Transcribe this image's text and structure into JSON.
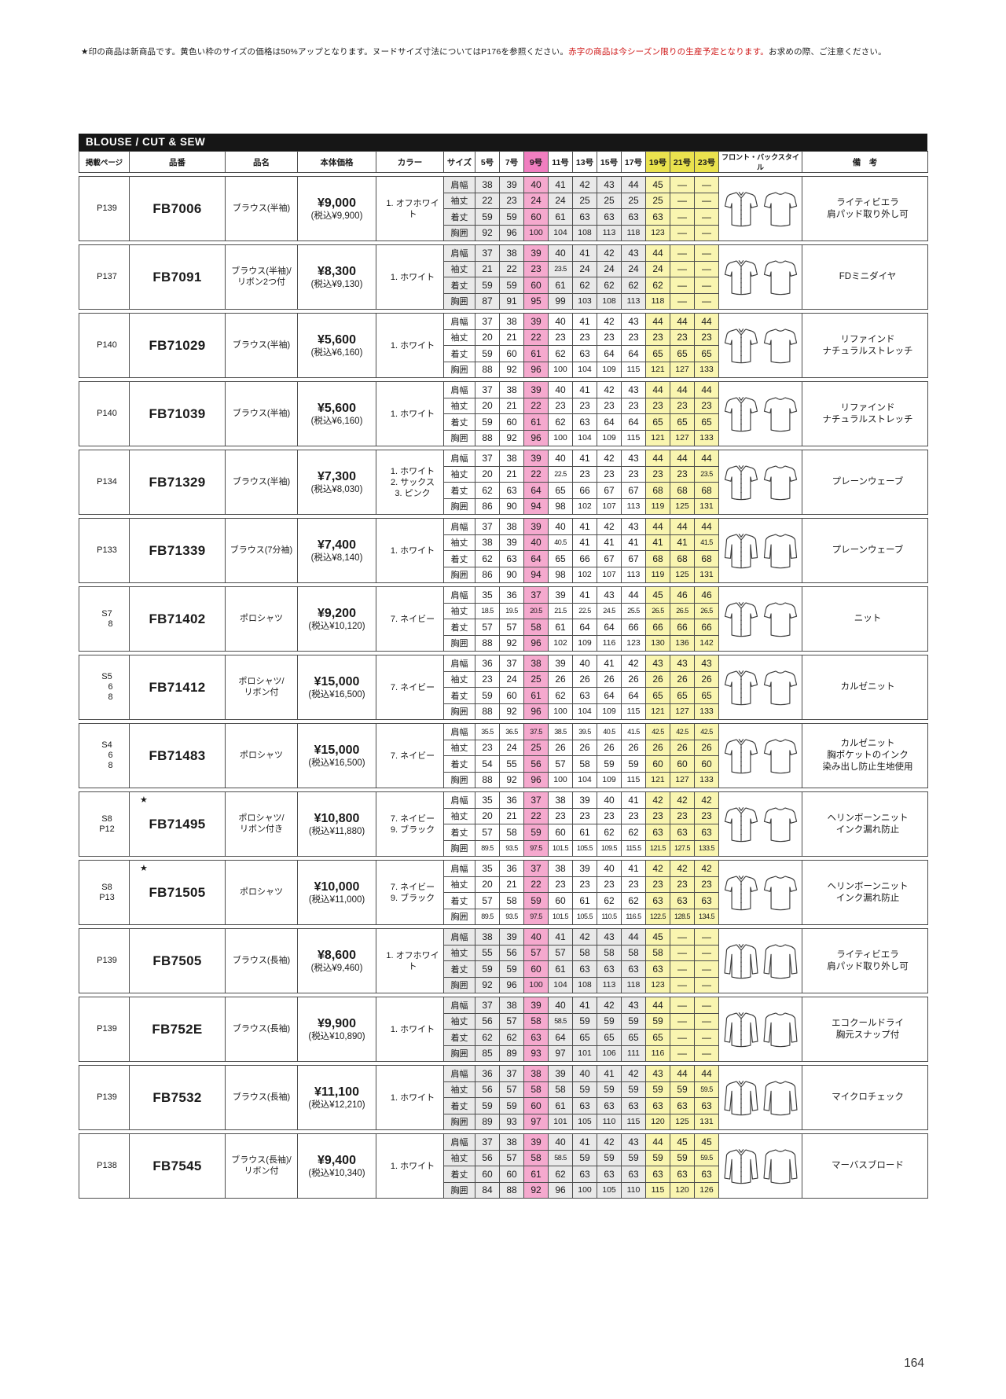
{
  "note": {
    "prefix": "★印の商品は新商品です。黄色い枠のサイズの価格は50%アップとなります。ヌードサイズ寸法についてはP176を参照ください。",
    "red": "赤字の商品は今シーズン限りの生産予定となります。",
    "suffix": "お求めの際、ご注意ください。"
  },
  "banner": "BLOUSE / CUT & SEW",
  "header": {
    "page": "掲載ページ",
    "code": "品番",
    "name": "品名",
    "price": "本体価格",
    "color": "カラー",
    "size": "サイズ",
    "sizes": [
      "5号",
      "7号",
      "9号",
      "11号",
      "13号",
      "15号",
      "17号",
      "19号",
      "21号",
      "23号"
    ],
    "style": "フロント・バックスタイル",
    "remarks": "備　考"
  },
  "measure_labels": [
    "肩幅",
    "袖丈",
    "着丈",
    "胸囲"
  ],
  "page_number": "164",
  "products": [
    {
      "page": [
        "P139"
      ],
      "new": false,
      "code": "FB7006",
      "name": [
        "ブラウス(半袖)"
      ],
      "price": "¥9,000",
      "price_tax": "(税込¥9,900)",
      "colors": [
        "1. オフホワイト"
      ],
      "sleeve": "short",
      "shaded": true,
      "rows": [
        [
          "38",
          "39",
          "40",
          "41",
          "42",
          "43",
          "44",
          "45",
          "—",
          "—"
        ],
        [
          "22",
          "23",
          "24",
          "24",
          "25",
          "25",
          "25",
          "25",
          "—",
          "—"
        ],
        [
          "59",
          "59",
          "60",
          "61",
          "63",
          "63",
          "63",
          "63",
          "—",
          "—"
        ],
        [
          "92",
          "96",
          "100",
          "104",
          "108",
          "113",
          "118",
          "123",
          "—",
          "—"
        ]
      ],
      "remarks": [
        "ライティビエラ",
        "肩パッド取り外し可"
      ]
    },
    {
      "page": [
        "P137"
      ],
      "new": false,
      "code": "FB7091",
      "name": [
        "ブラウス(半袖)/",
        "リボン2つ付"
      ],
      "price": "¥8,300",
      "price_tax": "(税込¥9,130)",
      "colors": [
        "1. ホワイト"
      ],
      "sleeve": "short",
      "shaded": true,
      "rows": [
        [
          "37",
          "38",
          "39",
          "40",
          "41",
          "42",
          "43",
          "44",
          "—",
          "—"
        ],
        [
          "21",
          "22",
          "23",
          "23.5",
          "24",
          "24",
          "24",
          "24",
          "—",
          "—"
        ],
        [
          "59",
          "59",
          "60",
          "61",
          "62",
          "62",
          "62",
          "62",
          "—",
          "—"
        ],
        [
          "87",
          "91",
          "95",
          "99",
          "103",
          "108",
          "113",
          "118",
          "—",
          "—"
        ]
      ],
      "remarks": [
        "FDミニダイヤ"
      ]
    },
    {
      "page": [
        "P140"
      ],
      "new": false,
      "code": "FB71029",
      "name": [
        "ブラウス(半袖)"
      ],
      "price": "¥5,600",
      "price_tax": "(税込¥6,160)",
      "colors": [
        "1. ホワイト"
      ],
      "sleeve": "short",
      "shaded": false,
      "rows": [
        [
          "37",
          "38",
          "39",
          "40",
          "41",
          "42",
          "43",
          "44",
          "44",
          "44"
        ],
        [
          "20",
          "21",
          "22",
          "23",
          "23",
          "23",
          "23",
          "23",
          "23",
          "23"
        ],
        [
          "59",
          "60",
          "61",
          "62",
          "63",
          "64",
          "64",
          "65",
          "65",
          "65"
        ],
        [
          "88",
          "92",
          "96",
          "100",
          "104",
          "109",
          "115",
          "121",
          "127",
          "133"
        ]
      ],
      "remarks": [
        "リファインド",
        "ナチュラルストレッチ"
      ]
    },
    {
      "page": [
        "P140"
      ],
      "new": false,
      "code": "FB71039",
      "name": [
        "ブラウス(半袖)"
      ],
      "price": "¥5,600",
      "price_tax": "(税込¥6,160)",
      "colors": [
        "1. ホワイト"
      ],
      "sleeve": "short",
      "shaded": false,
      "rows": [
        [
          "37",
          "38",
          "39",
          "40",
          "41",
          "42",
          "43",
          "44",
          "44",
          "44"
        ],
        [
          "20",
          "21",
          "22",
          "23",
          "23",
          "23",
          "23",
          "23",
          "23",
          "23"
        ],
        [
          "59",
          "60",
          "61",
          "62",
          "63",
          "64",
          "64",
          "65",
          "65",
          "65"
        ],
        [
          "88",
          "92",
          "96",
          "100",
          "104",
          "109",
          "115",
          "121",
          "127",
          "133"
        ]
      ],
      "remarks": [
        "リファインド",
        "ナチュラルストレッチ"
      ]
    },
    {
      "page": [
        "P134"
      ],
      "new": false,
      "code": "FB71329",
      "name": [
        "ブラウス(半袖)"
      ],
      "price": "¥7,300",
      "price_tax": "(税込¥8,030)",
      "colors": [
        "1. ホワイト",
        "2. サックス",
        "3. ピンク"
      ],
      "sleeve": "short",
      "shaded": false,
      "rows": [
        [
          "37",
          "38",
          "39",
          "40",
          "41",
          "42",
          "43",
          "44",
          "44",
          "44"
        ],
        [
          "20",
          "21",
          "22",
          "22.5",
          "23",
          "23",
          "23",
          "23",
          "23",
          "23.5"
        ],
        [
          "62",
          "63",
          "64",
          "65",
          "66",
          "67",
          "67",
          "68",
          "68",
          "68"
        ],
        [
          "86",
          "90",
          "94",
          "98",
          "102",
          "107",
          "113",
          "119",
          "125",
          "131"
        ]
      ],
      "remarks": [
        "プレーンウェーブ"
      ]
    },
    {
      "page": [
        "P133"
      ],
      "new": false,
      "code": "FB71339",
      "name": [
        "ブラウス(7分袖)"
      ],
      "price": "¥7,400",
      "price_tax": "(税込¥8,140)",
      "colors": [
        "1. ホワイト"
      ],
      "sleeve": "three-quarter",
      "shaded": false,
      "rows": [
        [
          "37",
          "38",
          "39",
          "40",
          "41",
          "42",
          "43",
          "44",
          "44",
          "44"
        ],
        [
          "38",
          "39",
          "40",
          "40.5",
          "41",
          "41",
          "41",
          "41",
          "41",
          "41.5"
        ],
        [
          "62",
          "63",
          "64",
          "65",
          "66",
          "67",
          "67",
          "68",
          "68",
          "68"
        ],
        [
          "86",
          "90",
          "94",
          "98",
          "102",
          "107",
          "113",
          "119",
          "125",
          "131"
        ]
      ],
      "remarks": [
        "プレーンウェーブ"
      ]
    },
    {
      "page": [
        "S7",
        "8"
      ],
      "new": false,
      "code": "FB71402",
      "name": [
        "ポロシャツ"
      ],
      "price": "¥9,200",
      "price_tax": "(税込¥10,120)",
      "colors": [
        "7. ネイビー"
      ],
      "sleeve": "short",
      "shaded": false,
      "rows": [
        [
          "35",
          "36",
          "37",
          "39",
          "41",
          "43",
          "44",
          "45",
          "46",
          "46"
        ],
        [
          "18.5",
          "19.5",
          "20.5",
          "21.5",
          "22.5",
          "24.5",
          "25.5",
          "26.5",
          "26.5",
          "26.5"
        ],
        [
          "57",
          "57",
          "58",
          "61",
          "64",
          "64",
          "66",
          "66",
          "66",
          "66"
        ],
        [
          "88",
          "92",
          "96",
          "102",
          "109",
          "116",
          "123",
          "130",
          "136",
          "142"
        ]
      ],
      "remarks": [
        "ニット"
      ]
    },
    {
      "page": [
        "S5",
        "6",
        "8"
      ],
      "new": false,
      "code": "FB71412",
      "name": [
        "ポロシャツ/",
        "リボン付"
      ],
      "price": "¥15,000",
      "price_tax": "(税込¥16,500)",
      "colors": [
        "7. ネイビー"
      ],
      "sleeve": "short",
      "shaded": false,
      "rows": [
        [
          "36",
          "37",
          "38",
          "39",
          "40",
          "41",
          "42",
          "43",
          "43",
          "43"
        ],
        [
          "23",
          "24",
          "25",
          "26",
          "26",
          "26",
          "26",
          "26",
          "26",
          "26"
        ],
        [
          "59",
          "60",
          "61",
          "62",
          "63",
          "64",
          "64",
          "65",
          "65",
          "65"
        ],
        [
          "88",
          "92",
          "96",
          "100",
          "104",
          "109",
          "115",
          "121",
          "127",
          "133"
        ]
      ],
      "remarks": [
        "カルゼニット"
      ]
    },
    {
      "page": [
        "S4",
        "6",
        "8"
      ],
      "new": false,
      "code": "FB71483",
      "name": [
        "ポロシャツ"
      ],
      "price": "¥15,000",
      "price_tax": "(税込¥16,500)",
      "colors": [
        "7. ネイビー"
      ],
      "sleeve": "short",
      "shaded": false,
      "rows": [
        [
          "35.5",
          "36.5",
          "37.5",
          "38.5",
          "39.5",
          "40.5",
          "41.5",
          "42.5",
          "42.5",
          "42.5"
        ],
        [
          "23",
          "24",
          "25",
          "26",
          "26",
          "26",
          "26",
          "26",
          "26",
          "26"
        ],
        [
          "54",
          "55",
          "56",
          "57",
          "58",
          "59",
          "59",
          "60",
          "60",
          "60"
        ],
        [
          "88",
          "92",
          "96",
          "100",
          "104",
          "109",
          "115",
          "121",
          "127",
          "133"
        ]
      ],
      "remarks": [
        "カルゼニット",
        "胸ポケットのインク",
        "染み出し防止生地使用"
      ]
    },
    {
      "page": [
        "S8",
        "P12"
      ],
      "new": true,
      "code": "FB71495",
      "name": [
        "ポロシャツ/",
        "リボン付き"
      ],
      "price": "¥10,800",
      "price_tax": "(税込¥11,880)",
      "colors": [
        "7. ネイビー",
        "9. ブラック"
      ],
      "sleeve": "short",
      "shaded": false,
      "rows": [
        [
          "35",
          "36",
          "37",
          "38",
          "39",
          "40",
          "41",
          "42",
          "42",
          "42"
        ],
        [
          "20",
          "21",
          "22",
          "23",
          "23",
          "23",
          "23",
          "23",
          "23",
          "23"
        ],
        [
          "57",
          "58",
          "59",
          "60",
          "61",
          "62",
          "62",
          "63",
          "63",
          "63"
        ],
        [
          "89.5",
          "93.5",
          "97.5",
          "101.5",
          "105.5",
          "109.5",
          "115.5",
          "121.5",
          "127.5",
          "133.5"
        ]
      ],
      "remarks": [
        "ヘリンボーンニット",
        "インク漏れ防止"
      ]
    },
    {
      "page": [
        "S8",
        "P13"
      ],
      "new": true,
      "code": "FB71505",
      "name": [
        "ポロシャツ"
      ],
      "price": "¥10,000",
      "price_tax": "(税込¥11,000)",
      "colors": [
        "7. ネイビー",
        "9. ブラック"
      ],
      "sleeve": "short",
      "shaded": false,
      "rows": [
        [
          "35",
          "36",
          "37",
          "38",
          "39",
          "40",
          "41",
          "42",
          "42",
          "42"
        ],
        [
          "20",
          "21",
          "22",
          "23",
          "23",
          "23",
          "23",
          "23",
          "23",
          "23"
        ],
        [
          "57",
          "58",
          "59",
          "60",
          "61",
          "62",
          "62",
          "63",
          "63",
          "63"
        ],
        [
          "89.5",
          "93.5",
          "97.5",
          "101.5",
          "105.5",
          "110.5",
          "116.5",
          "122.5",
          "128.5",
          "134.5"
        ]
      ],
      "remarks": [
        "ヘリンボーンニット",
        "インク漏れ防止"
      ]
    },
    {
      "page": [
        "P139"
      ],
      "new": false,
      "code": "FB7505",
      "name": [
        "ブラウス(長袖)"
      ],
      "price": "¥8,600",
      "price_tax": "(税込¥9,460)",
      "colors": [
        "1. オフホワイト"
      ],
      "sleeve": "long",
      "shaded": true,
      "rows": [
        [
          "38",
          "39",
          "40",
          "41",
          "42",
          "43",
          "44",
          "45",
          "—",
          "—"
        ],
        [
          "55",
          "56",
          "57",
          "57",
          "58",
          "58",
          "58",
          "58",
          "—",
          "—"
        ],
        [
          "59",
          "59",
          "60",
          "61",
          "63",
          "63",
          "63",
          "63",
          "—",
          "—"
        ],
        [
          "92",
          "96",
          "100",
          "104",
          "108",
          "113",
          "118",
          "123",
          "—",
          "—"
        ]
      ],
      "remarks": [
        "ライティビエラ",
        "肩パッド取り外し可"
      ]
    },
    {
      "page": [
        "P139"
      ],
      "new": false,
      "code": "FB752E",
      "name": [
        "ブラウス(長袖)"
      ],
      "price": "¥9,900",
      "price_tax": "(税込¥10,890)",
      "colors": [
        "1. ホワイト"
      ],
      "sleeve": "long",
      "shaded": true,
      "rows": [
        [
          "37",
          "38",
          "39",
          "40",
          "41",
          "42",
          "43",
          "44",
          "—",
          "—"
        ],
        [
          "56",
          "57",
          "58",
          "58.5",
          "59",
          "59",
          "59",
          "59",
          "—",
          "—"
        ],
        [
          "62",
          "62",
          "63",
          "64",
          "65",
          "65",
          "65",
          "65",
          "—",
          "—"
        ],
        [
          "85",
          "89",
          "93",
          "97",
          "101",
          "106",
          "111",
          "116",
          "—",
          "—"
        ]
      ],
      "remarks": [
        "エコクールドライ",
        "胸元スナップ付"
      ]
    },
    {
      "page": [
        "P139"
      ],
      "new": false,
      "code": "FB7532",
      "name": [
        "ブラウス(長袖)"
      ],
      "price": "¥11,100",
      "price_tax": "(税込¥12,210)",
      "colors": [
        "1. ホワイト"
      ],
      "sleeve": "long",
      "shaded": true,
      "rows": [
        [
          "36",
          "37",
          "38",
          "39",
          "40",
          "41",
          "42",
          "43",
          "44",
          "44"
        ],
        [
          "56",
          "57",
          "58",
          "58",
          "59",
          "59",
          "59",
          "59",
          "59",
          "59.5"
        ],
        [
          "59",
          "59",
          "60",
          "61",
          "63",
          "63",
          "63",
          "63",
          "63",
          "63"
        ],
        [
          "89",
          "93",
          "97",
          "101",
          "105",
          "110",
          "115",
          "120",
          "125",
          "131"
        ]
      ],
      "remarks": [
        "マイクロチェック"
      ]
    },
    {
      "page": [
        "P138"
      ],
      "new": false,
      "code": "FB7545",
      "name": [
        "ブラウス(長袖)/",
        "リボン付"
      ],
      "price": "¥9,400",
      "price_tax": "(税込¥10,340)",
      "colors": [
        "1. ホワイト"
      ],
      "sleeve": "long",
      "shaded": true,
      "rows": [
        [
          "37",
          "38",
          "39",
          "40",
          "41",
          "42",
          "43",
          "44",
          "45",
          "45"
        ],
        [
          "56",
          "57",
          "58",
          "58.5",
          "59",
          "59",
          "59",
          "59",
          "59",
          "59.5"
        ],
        [
          "60",
          "60",
          "61",
          "62",
          "63",
          "63",
          "63",
          "63",
          "63",
          "63"
        ],
        [
          "84",
          "88",
          "92",
          "96",
          "100",
          "105",
          "110",
          "115",
          "120",
          "126"
        ]
      ],
      "remarks": [
        "マーバスブロード"
      ]
    }
  ]
}
